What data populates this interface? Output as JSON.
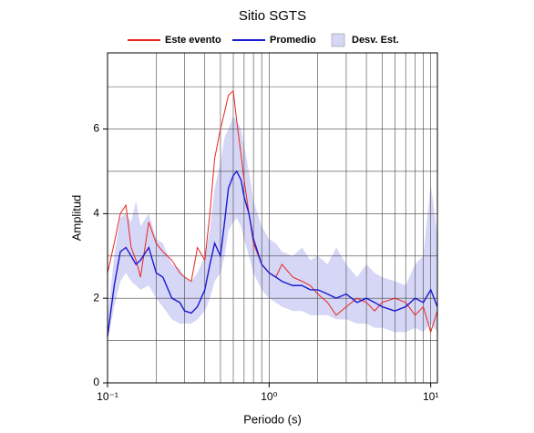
{
  "chart_data": {
    "type": "line",
    "title": "Sitio SGTS",
    "x_label": "Periodo (s)",
    "y_label": "Amplitud",
    "log_x": true,
    "grid": true,
    "legend": "top",
    "x": [
      0.1,
      0.11,
      0.12,
      0.13,
      0.14,
      0.15,
      0.16,
      0.18,
      0.2,
      0.22,
      0.25,
      0.28,
      0.3,
      0.33,
      0.36,
      0.4,
      0.43,
      0.46,
      0.5,
      0.53,
      0.56,
      0.6,
      0.63,
      0.67,
      0.7,
      0.75,
      0.8,
      0.9,
      1.0,
      1.1,
      1.2,
      1.4,
      1.6,
      1.8,
      2.0,
      2.3,
      2.6,
      3.0,
      3.5,
      4.0,
      4.5,
      5.0,
      6.0,
      7.0,
      8.0,
      9.0,
      10,
      11
    ],
    "band": {
      "name": "Desv. Est.",
      "color": "#d6d6f7",
      "lower": [
        1.0,
        1.8,
        2.4,
        2.6,
        2.4,
        2.3,
        2.2,
        2.3,
        2.0,
        1.8,
        1.5,
        1.4,
        1.4,
        1.4,
        1.5,
        1.7,
        2.0,
        2.4,
        2.6,
        3.0,
        3.6,
        3.8,
        3.9,
        3.7,
        3.4,
        3.0,
        2.6,
        2.2,
        2.0,
        1.9,
        1.8,
        1.7,
        1.7,
        1.6,
        1.6,
        1.6,
        1.5,
        1.5,
        1.4,
        1.4,
        1.3,
        1.3,
        1.2,
        1.2,
        1.3,
        1.2,
        1.4,
        1.2
      ],
      "upper": [
        1.5,
        3.0,
        3.9,
        4.0,
        3.8,
        4.3,
        3.7,
        4.0,
        3.4,
        3.3,
        2.8,
        2.7,
        2.5,
        2.4,
        2.6,
        3.0,
        3.6,
        4.6,
        5.2,
        5.8,
        6.0,
        6.3,
        6.2,
        6.0,
        5.6,
        5.0,
        4.3,
        3.7,
        3.4,
        3.3,
        3.1,
        3.0,
        3.2,
        2.9,
        3.0,
        2.8,
        3.2,
        2.8,
        2.5,
        2.8,
        2.6,
        2.5,
        2.4,
        2.3,
        2.8,
        3.0,
        4.7,
        3.5
      ]
    },
    "series": [
      {
        "name": "Este evento",
        "color": "#e8261f",
        "values": [
          2.6,
          3.3,
          4.0,
          4.2,
          3.2,
          2.9,
          2.5,
          3.8,
          3.3,
          3.1,
          2.9,
          2.6,
          2.5,
          2.4,
          3.2,
          2.9,
          4.0,
          5.3,
          6.0,
          6.4,
          6.8,
          6.9,
          6.2,
          5.4,
          4.8,
          4.0,
          3.3,
          2.8,
          2.6,
          2.5,
          2.8,
          2.5,
          2.4,
          2.3,
          2.1,
          1.9,
          1.6,
          1.8,
          2.0,
          1.9,
          1.7,
          1.9,
          2.0,
          1.9,
          1.6,
          1.8,
          1.2,
          1.7
        ]
      },
      {
        "name": "Promedio",
        "color": "#1a1ad0",
        "values": [
          1.1,
          2.3,
          3.1,
          3.2,
          3.0,
          2.8,
          2.9,
          3.2,
          2.6,
          2.5,
          2.0,
          1.9,
          1.7,
          1.65,
          1.8,
          2.2,
          2.8,
          3.3,
          3.0,
          3.8,
          4.6,
          4.9,
          5.0,
          4.8,
          4.4,
          4.0,
          3.4,
          2.8,
          2.6,
          2.5,
          2.4,
          2.3,
          2.3,
          2.2,
          2.2,
          2.1,
          2.0,
          2.1,
          1.9,
          2.0,
          1.9,
          1.8,
          1.7,
          1.8,
          2.0,
          1.9,
          2.2,
          1.8
        ]
      }
    ],
    "xlim": [
      0.1,
      11
    ],
    "xticks": [
      {
        "value": 0.1,
        "label": "10⁻¹"
      },
      {
        "value": 1,
        "label": "10⁰"
      },
      {
        "value": 10,
        "label": "10¹"
      }
    ],
    "x_minor_ticks": [
      0.2,
      0.3,
      0.4,
      0.5,
      0.6,
      0.7,
      0.8,
      0.9,
      2,
      3,
      4,
      5,
      6,
      7,
      8,
      9
    ],
    "ylim": [
      0,
      7.8
    ],
    "yticks": [
      0,
      2,
      4,
      6
    ],
    "y_minor_ticks": [
      1,
      3,
      5,
      7
    ]
  }
}
